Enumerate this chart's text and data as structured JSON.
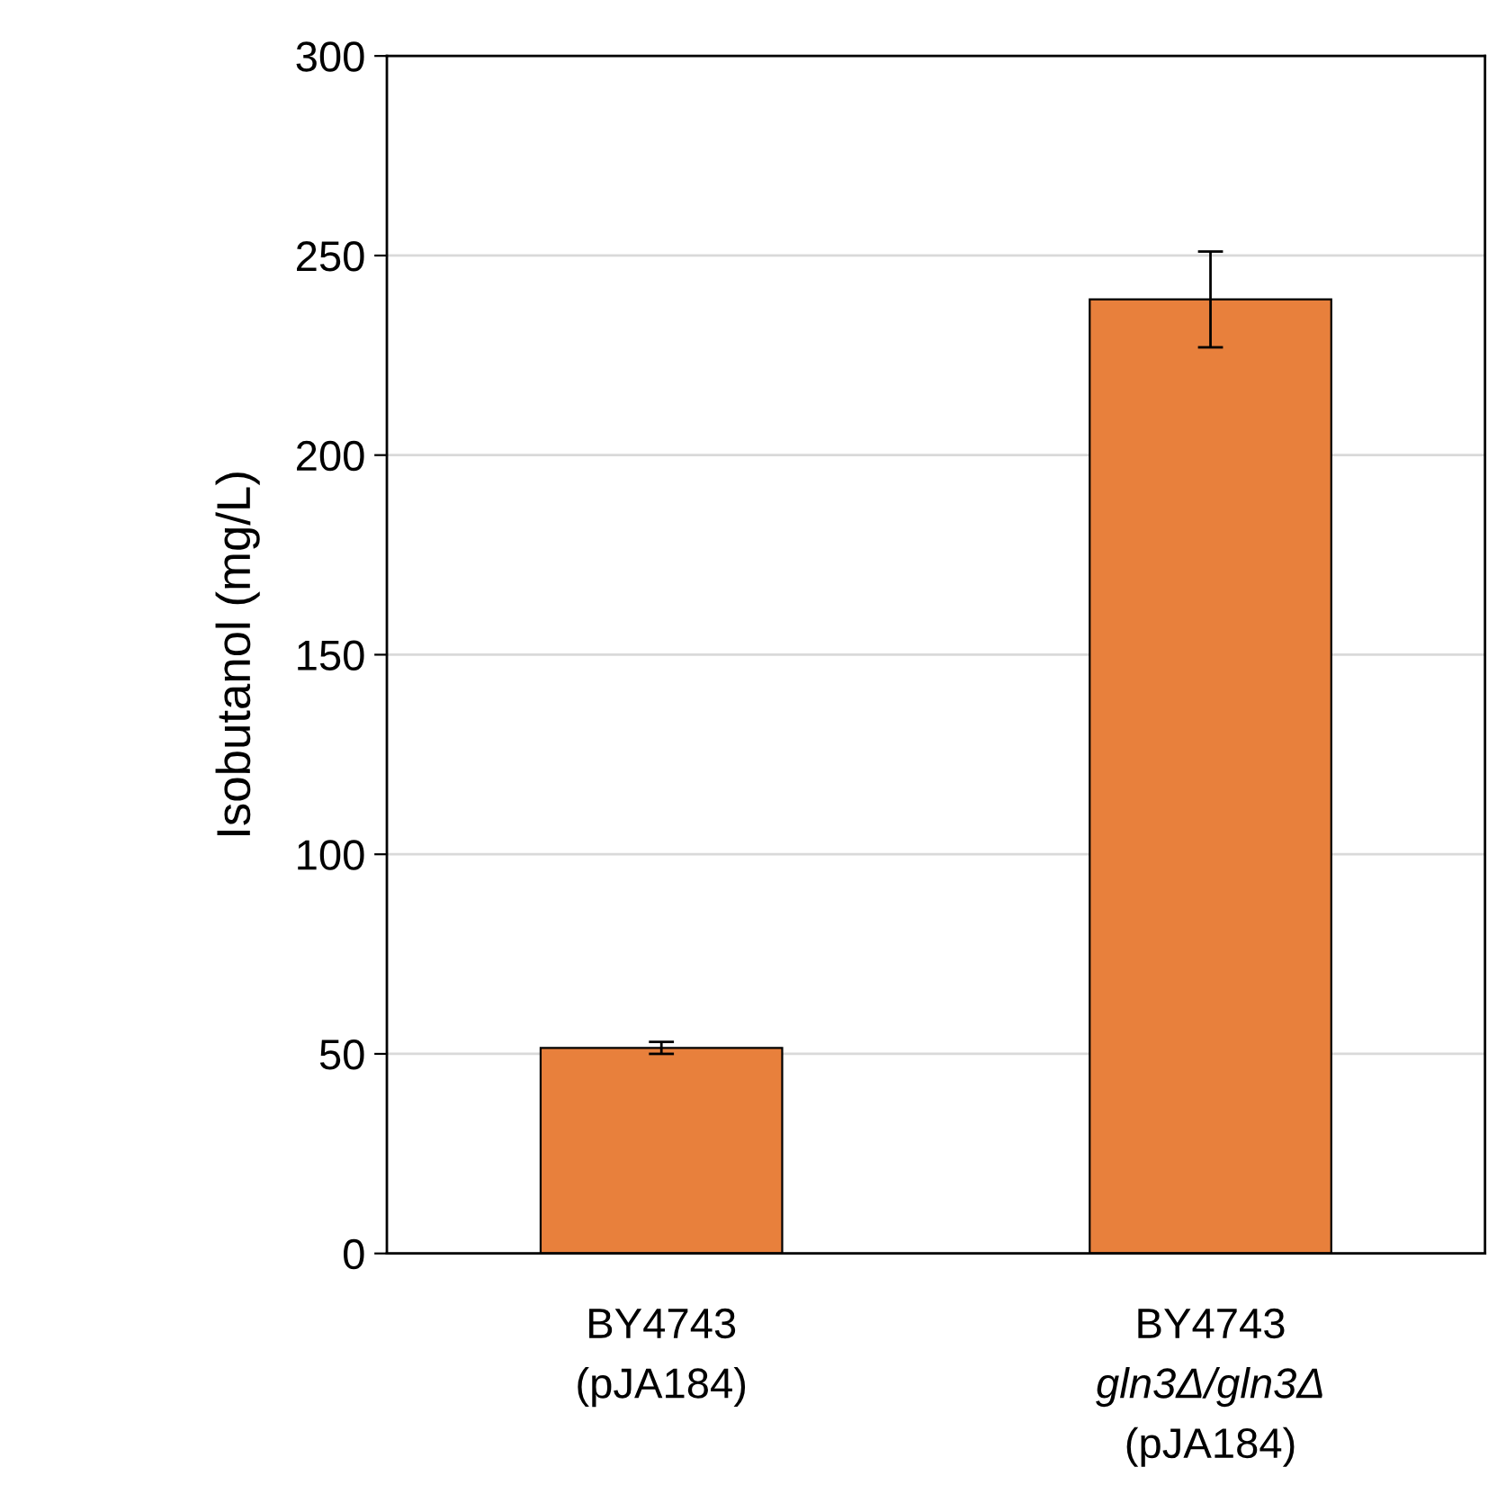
{
  "chart_data": {
    "type": "bar",
    "ylabel": "Isobutanol (mg/L)",
    "categories": [
      "BY4743\n(pJA184)",
      "BY4743\ngln3Δ/gln3Δ\n(pJA184)"
    ],
    "values": [
      51.5,
      239
    ],
    "errors": [
      1.5,
      12
    ],
    "color": "#e8803c",
    "ylim": [
      0,
      300
    ],
    "yticks": [
      0,
      50,
      100,
      150,
      200,
      250,
      300
    ],
    "grid": "y"
  }
}
